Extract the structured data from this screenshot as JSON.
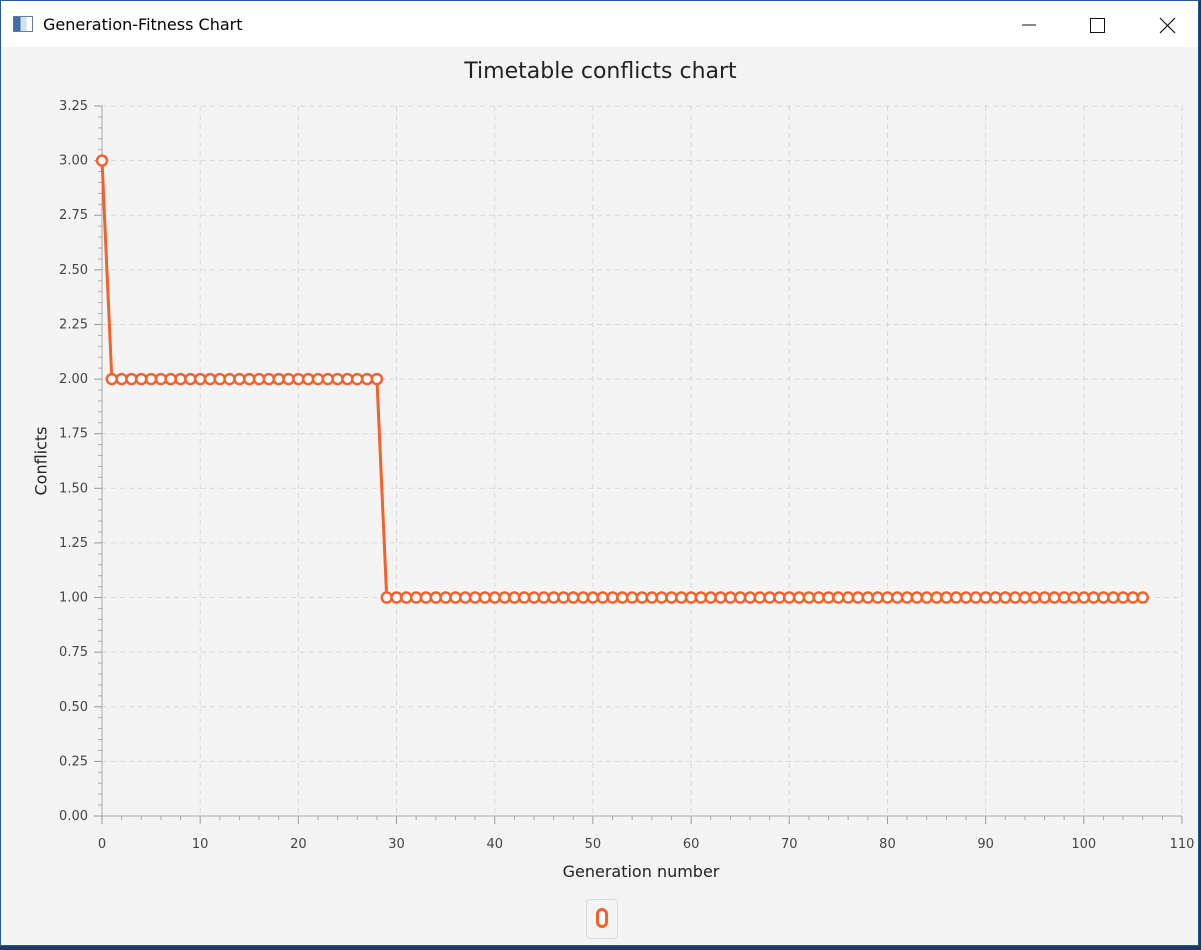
{
  "window": {
    "title": "Generation-Fitness Chart"
  },
  "chart_data": {
    "type": "line",
    "title": "Timetable conflicts chart",
    "xlabel": "Generation number",
    "ylabel": "Conflicts",
    "xlim": [
      0,
      110
    ],
    "ylim": [
      0,
      3.25
    ],
    "x_ticks": [
      "0",
      "10",
      "20",
      "30",
      "40",
      "50",
      "60",
      "70",
      "80",
      "90",
      "100",
      "110"
    ],
    "y_ticks": [
      "0.00",
      "0.25",
      "0.50",
      "0.75",
      "1.00",
      "1.25",
      "1.50",
      "1.75",
      "2.00",
      "2.25",
      "2.50",
      "2.75",
      "3.00",
      "3.25"
    ],
    "grid": true,
    "legend_placement": "bottom",
    "series": [
      {
        "color": "#f3622d",
        "x": [
          0,
          1,
          2,
          3,
          4,
          5,
          6,
          7,
          8,
          9,
          10,
          11,
          12,
          13,
          14,
          15,
          16,
          17,
          18,
          19,
          20,
          21,
          22,
          23,
          24,
          25,
          26,
          27,
          28,
          29,
          30,
          31,
          32,
          33,
          34,
          35,
          36,
          37,
          38,
          39,
          40,
          41,
          42,
          43,
          44,
          45,
          46,
          47,
          48,
          49,
          50,
          51,
          52,
          53,
          54,
          55,
          56,
          57,
          58,
          59,
          60,
          61,
          62,
          63,
          64,
          65,
          66,
          67,
          68,
          69,
          70,
          71,
          72,
          73,
          74,
          75,
          76,
          77,
          78,
          79,
          80,
          81,
          82,
          83,
          84,
          85,
          86,
          87,
          88,
          89,
          90,
          91,
          92,
          93,
          94,
          95,
          96,
          97,
          98,
          99,
          100,
          101,
          102,
          103,
          104,
          105,
          106
        ],
        "values": [
          3,
          2,
          2,
          2,
          2,
          2,
          2,
          2,
          2,
          2,
          2,
          2,
          2,
          2,
          2,
          2,
          2,
          2,
          2,
          2,
          2,
          2,
          2,
          2,
          2,
          2,
          2,
          2,
          2,
          1,
          1,
          1,
          1,
          1,
          1,
          1,
          1,
          1,
          1,
          1,
          1,
          1,
          1,
          1,
          1,
          1,
          1,
          1,
          1,
          1,
          1,
          1,
          1,
          1,
          1,
          1,
          1,
          1,
          1,
          1,
          1,
          1,
          1,
          1,
          1,
          1,
          1,
          1,
          1,
          1,
          1,
          1,
          1,
          1,
          1,
          1,
          1,
          1,
          1,
          1,
          1,
          1,
          1,
          1,
          1,
          1,
          1,
          1,
          1,
          1,
          1,
          1,
          1,
          1,
          1,
          1,
          1,
          1,
          1,
          1,
          1,
          1,
          1,
          1,
          1,
          1,
          1
        ]
      }
    ]
  }
}
